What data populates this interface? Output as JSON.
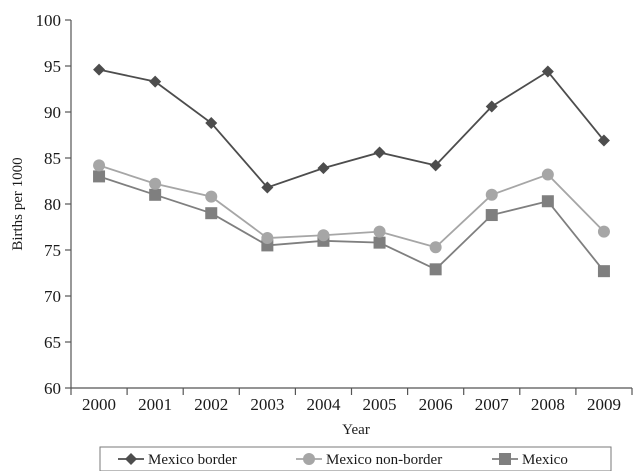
{
  "chart_data": {
    "type": "line",
    "xlabel": "Year",
    "ylabel": "Births per 1000",
    "ylim": [
      60,
      100
    ],
    "yticks": [
      60,
      65,
      70,
      75,
      80,
      85,
      90,
      95,
      100
    ],
    "categories": [
      "2000",
      "2001",
      "2002",
      "2003",
      "2004",
      "2005",
      "2006",
      "2007",
      "2008",
      "2009"
    ],
    "grid": false,
    "legend_position": "bottom",
    "series": [
      {
        "name": "Mexico border",
        "marker": "diamond",
        "color": "#4d4d4d",
        "values": [
          94.6,
          93.3,
          88.8,
          81.8,
          83.9,
          85.6,
          84.2,
          90.6,
          94.4,
          86.9
        ]
      },
      {
        "name": "Mexico non-border",
        "marker": "circle",
        "color": "#a6a6a6",
        "values": [
          84.2,
          82.2,
          80.8,
          76.3,
          76.6,
          77.0,
          75.3,
          81.0,
          83.2,
          77.0
        ]
      },
      {
        "name": "Mexico",
        "marker": "square",
        "color": "#7f7f7f",
        "values": [
          83.0,
          81.0,
          79.0,
          75.5,
          76.0,
          75.8,
          72.9,
          78.8,
          80.3,
          72.7
        ]
      }
    ]
  }
}
